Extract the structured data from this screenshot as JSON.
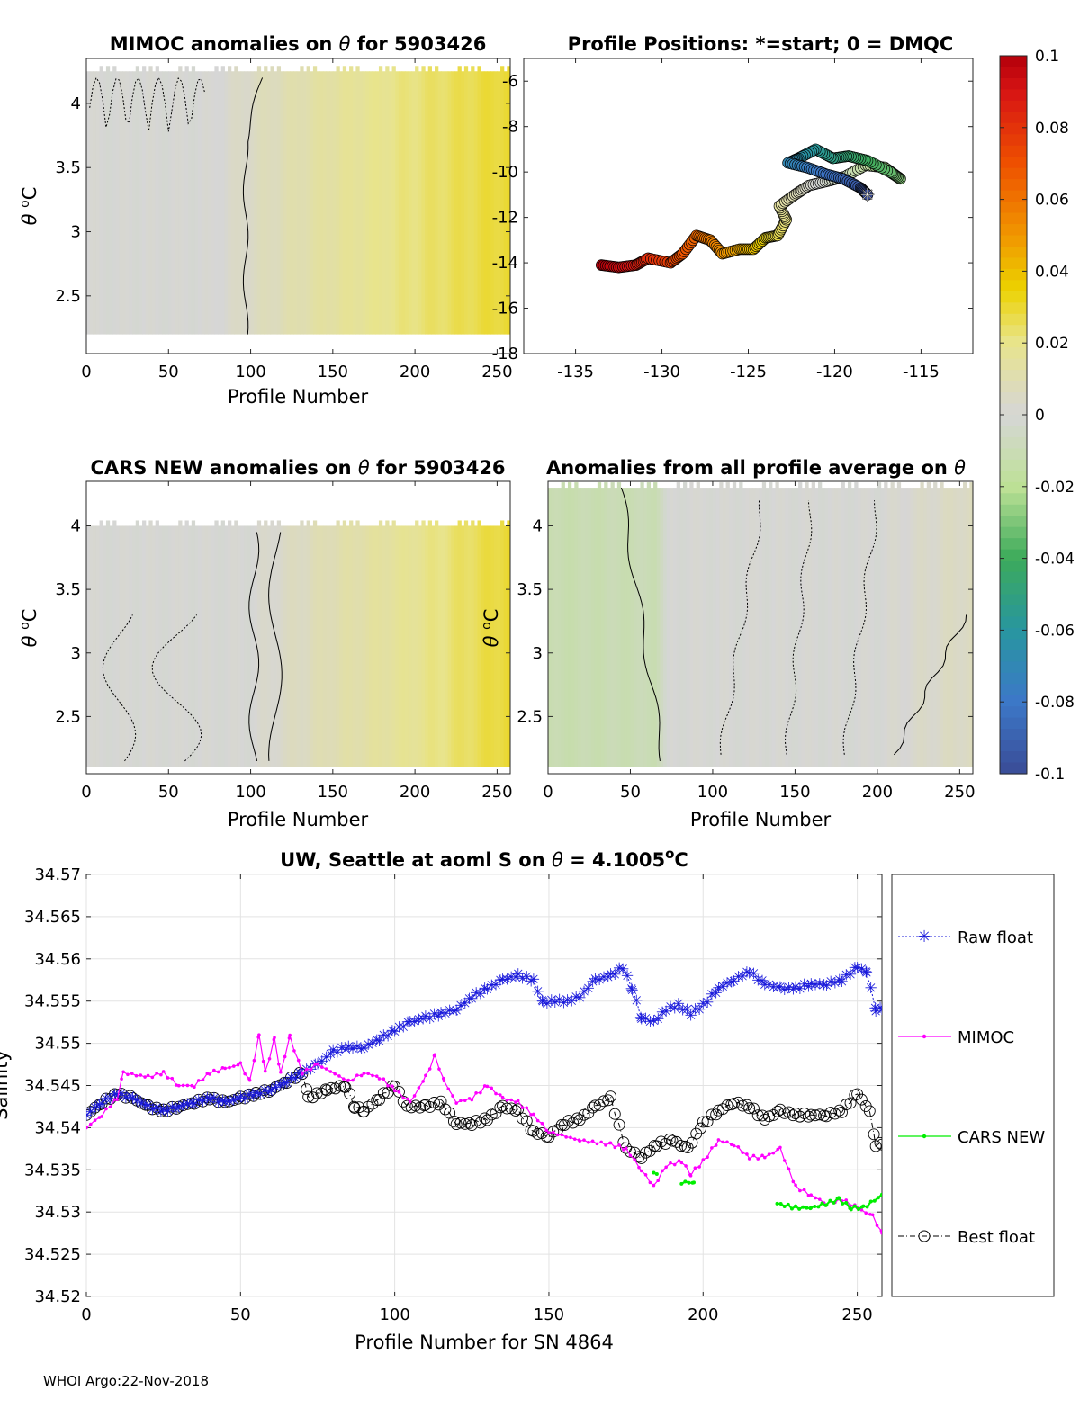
{
  "footer": "WHOI Argo:22-Nov-2018",
  "chart_data": [
    {
      "id": "mimoc",
      "type": "heatmap",
      "title_prefix": "MIMOC anomalies on ",
      "title_symbol": "θ",
      "title_suffix": "  for 5903426",
      "xlabel": "Profile Number",
      "ylabel_symbol": "θ",
      "ylabel_unit": "C",
      "xlim": [
        0,
        258
      ],
      "ylim": [
        2.05,
        4.35
      ],
      "xticks": [
        0,
        50,
        100,
        150,
        200,
        250
      ],
      "yticks": [
        2.5,
        3,
        3.5,
        4
      ],
      "anomaly_gradient": [
        [
          0,
          0.0
        ],
        [
          75,
          0.0
        ],
        [
          150,
          0.015
        ],
        [
          200,
          0.022
        ],
        [
          258,
          0.03
        ]
      ],
      "top_theta": 4.25,
      "bottom_theta": 2.2
    },
    {
      "id": "positions",
      "type": "scatter",
      "title": "Profile Positions: *=start; 0 = DMQC",
      "xlim": [
        -138,
        -112
      ],
      "ylim": [
        -18,
        -5
      ],
      "xticks": [
        -135,
        -130,
        -125,
        -120,
        -115
      ],
      "yticks": [
        -18,
        -16,
        -14,
        -12,
        -10,
        -8,
        -6
      ],
      "track": [
        [
          -133.5,
          -14.1
        ],
        [
          -132.5,
          -14.2
        ],
        [
          -131.5,
          -14.1
        ],
        [
          -130.8,
          -13.8
        ],
        [
          -129.5,
          -14.0
        ],
        [
          -128.8,
          -13.6
        ],
        [
          -128.0,
          -12.8
        ],
        [
          -127.2,
          -13.0
        ],
        [
          -126.5,
          -13.6
        ],
        [
          -125.5,
          -13.4
        ],
        [
          -124.7,
          -13.4
        ],
        [
          -124.0,
          -12.9
        ],
        [
          -123.3,
          -12.8
        ],
        [
          -122.8,
          -12.1
        ],
        [
          -123.2,
          -11.5
        ],
        [
          -122.3,
          -11.0
        ],
        [
          -121.5,
          -10.6
        ],
        [
          -120.4,
          -10.4
        ],
        [
          -119.4,
          -10.2
        ],
        [
          -118.2,
          -9.7
        ],
        [
          -117.1,
          -9.8
        ],
        [
          -116.2,
          -10.3
        ],
        [
          -116.8,
          -10.0
        ],
        [
          -118.1,
          -9.5
        ],
        [
          -119.2,
          -9.3
        ],
        [
          -120.1,
          -9.4
        ],
        [
          -121.1,
          -9.0
        ],
        [
          -122.1,
          -9.4
        ],
        [
          -122.7,
          -9.6
        ],
        [
          -121.6,
          -9.8
        ],
        [
          -120.5,
          -10.1
        ],
        [
          -119.5,
          -10.3
        ],
        [
          -118.5,
          -10.7
        ],
        [
          -118.1,
          -11.0
        ]
      ],
      "start_marker": [
        -118.1,
        -11.0
      ]
    },
    {
      "id": "cars",
      "type": "heatmap",
      "title_prefix": "CARS NEW anomalies on ",
      "title_symbol": "θ",
      "title_suffix": " for 5903426",
      "xlabel": "Profile Number",
      "ylabel_symbol": "θ",
      "ylabel_unit": "C",
      "xlim": [
        0,
        258
      ],
      "ylim": [
        2.05,
        4.35
      ],
      "xticks": [
        0,
        50,
        100,
        150,
        200,
        250
      ],
      "yticks": [
        2.5,
        3,
        3.5,
        4
      ],
      "anomaly_gradient": [
        [
          0,
          0.0
        ],
        [
          100,
          0.0
        ],
        [
          150,
          0.01
        ],
        [
          200,
          0.018
        ],
        [
          258,
          0.03
        ]
      ],
      "top_theta": 4.0,
      "bottom_theta": 2.1
    },
    {
      "id": "allavg",
      "type": "heatmap",
      "title_prefix": "Anomalies from all profile average on ",
      "title_symbol": "θ",
      "title_suffix": "",
      "xlabel": "Profile Number",
      "ylabel_symbol": "θ",
      "ylabel_unit": "C",
      "xlim": [
        0,
        258
      ],
      "ylim": [
        2.05,
        4.35
      ],
      "xticks": [
        0,
        50,
        100,
        150,
        200,
        250
      ],
      "yticks": [
        2.5,
        3,
        3.5,
        4
      ],
      "anomaly_gradient": [
        [
          0,
          -0.012
        ],
        [
          65,
          -0.01
        ],
        [
          75,
          0.0
        ],
        [
          200,
          0.0
        ],
        [
          258,
          0.006
        ]
      ],
      "top_theta": 4.3,
      "bottom_theta": 2.1
    },
    {
      "id": "colorbar",
      "type": "heatmap",
      "range": [
        -0.1,
        0.1
      ],
      "tick_labels": [
        "0.1",
        "0.08",
        "0.06",
        "0.04",
        "0.02",
        "0",
        "-0.02",
        "-0.04",
        "-0.06",
        "-0.08",
        "-0.1"
      ],
      "tick_values": [
        0.1,
        0.08,
        0.06,
        0.04,
        0.02,
        0,
        -0.02,
        -0.04,
        -0.06,
        -0.08,
        -0.1
      ]
    },
    {
      "id": "salinity",
      "type": "line",
      "title_prefix": "UW, Seattle at aoml S on ",
      "title_symbol": "θ",
      "title_suffix": " = 4.1005",
      "title_sup": "o",
      "title_unit": "C",
      "xlabel": "Profile Number for SN 4864",
      "ylabel": "Salinity",
      "xlim": [
        0,
        258
      ],
      "ylim": [
        34.52,
        34.57
      ],
      "xticks": [
        0,
        50,
        100,
        150,
        200,
        250
      ],
      "yticks": [
        34.52,
        34.525,
        34.53,
        34.535,
        34.54,
        34.545,
        34.55,
        34.555,
        34.56,
        34.565,
        34.57
      ],
      "ytick_labels": [
        "34.52",
        "34.525",
        "34.53",
        "34.535",
        "34.54",
        "34.545",
        "34.55",
        "34.555",
        "34.56",
        "34.565",
        "34.57"
      ],
      "grid": true,
      "legend": [
        "Raw float",
        "MIMOC",
        "CARS NEW",
        "Best float"
      ],
      "series": [
        {
          "name": "Raw float",
          "color": "#1a1adb",
          "points": [
            [
              0,
              34.5415
            ],
            [
              5,
              34.543
            ],
            [
              10,
              34.544
            ],
            [
              15,
              34.5435
            ],
            [
              20,
              34.5425
            ],
            [
              25,
              34.542
            ],
            [
              30,
              34.5425
            ],
            [
              35,
              34.543
            ],
            [
              40,
              34.5435
            ],
            [
              45,
              34.543
            ],
            [
              50,
              34.5435
            ],
            [
              55,
              34.544
            ],
            [
              60,
              34.5445
            ],
            [
              65,
              34.5455
            ],
            [
              70,
              34.5465
            ],
            [
              75,
              34.5475
            ],
            [
              80,
              34.549
            ],
            [
              85,
              34.5495
            ],
            [
              90,
              34.5495
            ],
            [
              95,
              34.5505
            ],
            [
              100,
              34.5515
            ],
            [
              105,
              34.5525
            ],
            [
              110,
              34.553
            ],
            [
              115,
              34.5535
            ],
            [
              120,
              34.554
            ],
            [
              125,
              34.5555
            ],
            [
              130,
              34.5565
            ],
            [
              135,
              34.5575
            ],
            [
              140,
              34.558
            ],
            [
              145,
              34.5575
            ],
            [
              148,
              34.5548
            ],
            [
              152,
              34.555
            ],
            [
              156,
              34.555
            ],
            [
              160,
              34.5555
            ],
            [
              165,
              34.5575
            ],
            [
              170,
              34.558
            ],
            [
              174,
              34.559
            ],
            [
              177,
              34.5565
            ],
            [
              180,
              34.553
            ],
            [
              184,
              34.5525
            ],
            [
              188,
              34.554
            ],
            [
              192,
              34.5545
            ],
            [
              196,
              34.5535
            ],
            [
              200,
              34.5545
            ],
            [
              205,
              34.5565
            ],
            [
              210,
              34.5575
            ],
            [
              215,
              34.5585
            ],
            [
              220,
              34.557
            ],
            [
              225,
              34.5565
            ],
            [
              230,
              34.5565
            ],
            [
              235,
              34.557
            ],
            [
              240,
              34.557
            ],
            [
              245,
              34.5575
            ],
            [
              250,
              34.559
            ],
            [
              253,
              34.5585
            ],
            [
              256,
              34.554
            ],
            [
              258,
              34.554
            ]
          ]
        },
        {
          "name": "MIMOC",
          "color": "#ff00ff",
          "points": [
            [
              0,
              34.54
            ],
            [
              5,
              34.5415
            ],
            [
              10,
              34.5435
            ],
            [
              12,
              34.5465
            ],
            [
              20,
              34.546
            ],
            [
              25,
              34.5465
            ],
            [
              30,
              34.545
            ],
            [
              35,
              34.545
            ],
            [
              40,
              34.5465
            ],
            [
              45,
              34.547
            ],
            [
              50,
              34.5475
            ],
            [
              53,
              34.5455
            ],
            [
              56,
              34.551
            ],
            [
              58,
              34.5465
            ],
            [
              61,
              34.5505
            ],
            [
              63,
              34.5465
            ],
            [
              66,
              34.5508
            ],
            [
              70,
              34.5465
            ],
            [
              75,
              34.5475
            ],
            [
              85,
              34.5455
            ],
            [
              90,
              34.5465
            ],
            [
              95,
              34.546
            ],
            [
              100,
              34.5445
            ],
            [
              105,
              34.543
            ],
            [
              110,
              34.546
            ],
            [
              113,
              34.5485
            ],
            [
              116,
              34.5455
            ],
            [
              120,
              34.543
            ],
            [
              125,
              34.5435
            ],
            [
              130,
              34.545
            ],
            [
              135,
              34.5435
            ],
            [
              140,
              34.543
            ],
            [
              145,
              34.5415
            ],
            [
              150,
              34.5395
            ],
            [
              160,
              34.5385
            ],
            [
              170,
              34.538
            ],
            [
              175,
              34.5375
            ],
            [
              180,
              34.535
            ],
            [
              184,
              34.533
            ],
            [
              188,
              34.5355
            ],
            [
              193,
              34.536
            ],
            [
              196,
              34.5345
            ],
            [
              200,
              34.536
            ],
            [
              205,
              34.5385
            ],
            [
              210,
              34.538
            ],
            [
              215,
              34.5365
            ],
            [
              220,
              34.5365
            ],
            [
              225,
              34.5375
            ],
            [
              230,
              34.533
            ],
            [
              235,
              34.532
            ],
            [
              240,
              34.531
            ],
            [
              245,
              34.5315
            ],
            [
              250,
              34.5305
            ],
            [
              255,
              34.5295
            ],
            [
              258,
              34.5275
            ]
          ]
        },
        {
          "name": "CARS NEW",
          "color": "#00ee00",
          "segments": [
            [
              [
                184,
                34.5345
              ],
              [
                185,
                34.5345
              ]
            ],
            [
              [
                193,
                34.5335
              ],
              [
                197,
                34.5335
              ]
            ],
            [
              [
                224,
                34.531
              ],
              [
                230,
                34.5305
              ],
              [
                235,
                34.5305
              ],
              [
                240,
                34.531
              ],
              [
                244,
                34.5315
              ],
              [
                248,
                34.5305
              ],
              [
                252,
                34.5305
              ],
              [
                258,
                34.532
              ]
            ]
          ]
        },
        {
          "name": "Best float",
          "color": "#000000",
          "points": [
            [
              0,
              34.5415
            ],
            [
              5,
              34.543
            ],
            [
              10,
              34.544
            ],
            [
              15,
              34.5435
            ],
            [
              20,
              34.5425
            ],
            [
              25,
              34.542
            ],
            [
              30,
              34.5425
            ],
            [
              35,
              34.543
            ],
            [
              40,
              34.5435
            ],
            [
              45,
              34.543
            ],
            [
              50,
              34.5435
            ],
            [
              55,
              34.544
            ],
            [
              60,
              34.5445
            ],
            [
              65,
              34.5455
            ],
            [
              70,
              34.5465
            ],
            [
              72,
              34.5435
            ],
            [
              78,
              34.5445
            ],
            [
              84,
              34.545
            ],
            [
              87,
              34.5425
            ],
            [
              90,
              34.542
            ],
            [
              95,
              34.5435
            ],
            [
              100,
              34.545
            ],
            [
              104,
              34.5425
            ],
            [
              110,
              34.5425
            ],
            [
              115,
              34.543
            ],
            [
              120,
              34.5405
            ],
            [
              125,
              34.5405
            ],
            [
              130,
              34.541
            ],
            [
              135,
              34.5425
            ],
            [
              140,
              34.542
            ],
            [
              145,
              34.5395
            ],
            [
              150,
              34.539
            ],
            [
              155,
              34.5405
            ],
            [
              160,
              34.541
            ],
            [
              165,
              34.5425
            ],
            [
              170,
              34.5435
            ],
            [
              175,
              34.5375
            ],
            [
              180,
              34.5365
            ],
            [
              185,
              34.538
            ],
            [
              190,
              34.5385
            ],
            [
              195,
              34.5375
            ],
            [
              200,
              34.5405
            ],
            [
              205,
              34.542
            ],
            [
              210,
              34.543
            ],
            [
              215,
              34.5425
            ],
            [
              220,
              34.541
            ],
            [
              225,
              34.542
            ],
            [
              230,
              34.5415
            ],
            [
              235,
              34.5415
            ],
            [
              240,
              34.5415
            ],
            [
              245,
              34.542
            ],
            [
              250,
              34.544
            ],
            [
              254,
              34.542
            ],
            [
              256,
              34.538
            ],
            [
              258,
              34.538
            ]
          ]
        }
      ]
    }
  ]
}
